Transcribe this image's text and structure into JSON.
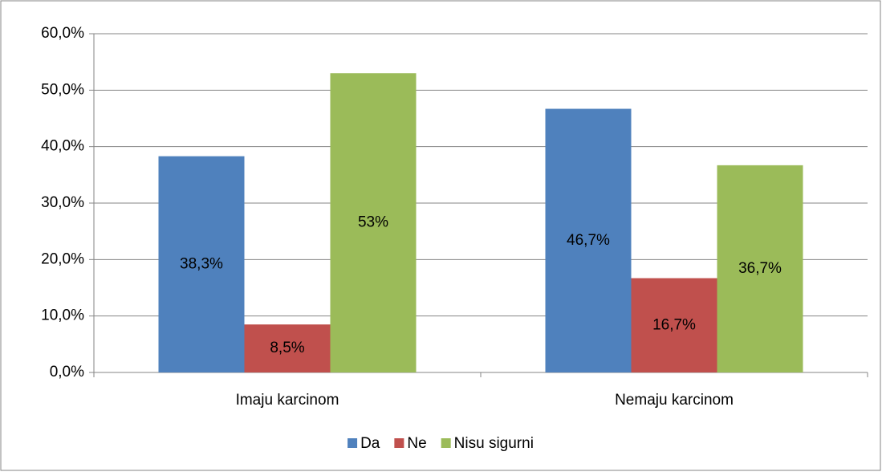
{
  "chart_data": {
    "type": "bar",
    "categories": [
      "Imaju karcinom",
      "Nemaju karcinom"
    ],
    "series": [
      {
        "name": "Da",
        "color": "#4f81bd",
        "values": [
          38.3,
          46.7
        ],
        "value_labels": [
          "38,3%",
          "46,7%"
        ]
      },
      {
        "name": "Ne",
        "color": "#c0504d",
        "values": [
          8.5,
          16.7
        ],
        "value_labels": [
          "8,5%",
          "16,7%"
        ]
      },
      {
        "name": "Nisu sigurni",
        "color": "#9bbb59",
        "values": [
          53,
          36.7
        ],
        "value_labels": [
          "53%",
          "36,7%"
        ]
      }
    ],
    "ylim": [
      0,
      60
    ],
    "yticks": [
      {
        "value": 0,
        "label": "0,0%"
      },
      {
        "value": 10,
        "label": "10,0%"
      },
      {
        "value": 20,
        "label": "20,0%"
      },
      {
        "value": 30,
        "label": "30,0%"
      },
      {
        "value": 40,
        "label": "40,0%"
      },
      {
        "value": 50,
        "label": "50,0%"
      },
      {
        "value": 60,
        "label": "60,0%"
      }
    ],
    "grid": true,
    "legend": "bottom"
  }
}
